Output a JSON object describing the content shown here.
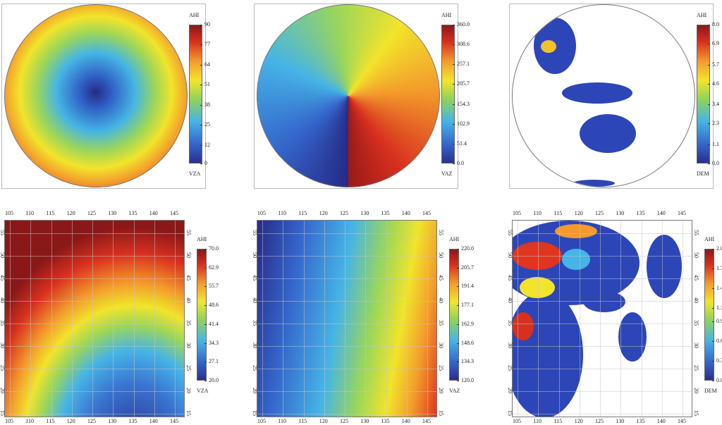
{
  "panels": [
    {
      "title": "AHI",
      "variable": "VZA",
      "colorbar_ticks": [
        90,
        77,
        64,
        51,
        38,
        25,
        12,
        0
      ]
    },
    {
      "title": "AHI",
      "variable": "VAZ",
      "colorbar_ticks": [
        {
          "value": 360,
          "label": "360.0"
        },
        308.6,
        257.1,
        205.7,
        154.3,
        102.9,
        51.4,
        {
          "value": 0,
          "label": "0.0"
        }
      ]
    },
    {
      "title": "AHI",
      "variable": "DEM",
      "colorbar_ticks": [
        {
          "value": 8,
          "label": "8.0"
        },
        6.9,
        5.7,
        4.6,
        3.4,
        2.3,
        1.1,
        {
          "value": 0,
          "label": "0.0"
        }
      ]
    },
    {
      "title": "AHI",
      "variable": "VZA",
      "colorbar_ticks": [
        {
          "value": 70,
          "label": "70.0"
        },
        62.9,
        55.7,
        48.6,
        41.4,
        34.3,
        27.1,
        {
          "value": 20,
          "label": "20.0"
        }
      ],
      "lon_ticks": [
        105,
        110,
        115,
        120,
        125,
        130,
        135,
        140,
        145
      ],
      "lat_ticks": [
        15,
        20,
        25,
        30,
        35,
        40,
        45,
        50,
        55
      ]
    },
    {
      "title": "AHI",
      "variable": "VAZ",
      "colorbar_ticks": [
        {
          "value": 220,
          "label": "220.0"
        },
        205.7,
        191.4,
        177.1,
        162.9,
        148.6,
        134.3,
        {
          "value": 120,
          "label": "120.0"
        }
      ],
      "lon_ticks": [
        105,
        110,
        115,
        120,
        125,
        130,
        135,
        140,
        145
      ],
      "lat_ticks": [
        15,
        20,
        25,
        30,
        35,
        40,
        45,
        50,
        55
      ]
    },
    {
      "title": "AHI",
      "variable": "DEM",
      "colorbar_ticks": [
        {
          "value": 2,
          "label": "2.0"
        },
        1.7,
        1.4,
        1.1,
        0.9,
        0.6,
        0.3,
        {
          "value": 0,
          "label": "0.0"
        }
      ],
      "lon_ticks": [
        105,
        110,
        115,
        120,
        125,
        130,
        135,
        140,
        145
      ],
      "lat_ticks": [
        15,
        20,
        25,
        30,
        35,
        40,
        45,
        50,
        55
      ]
    }
  ]
}
